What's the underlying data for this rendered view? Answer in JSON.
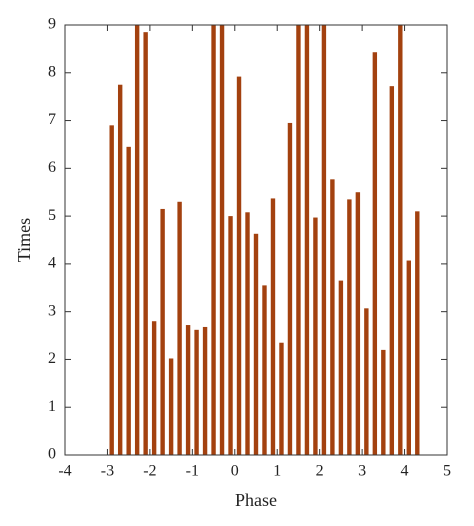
{
  "chart_data": {
    "type": "bar",
    "xlabel": "Phase",
    "ylabel": "Times",
    "x": [
      -2.9,
      -2.7,
      -2.5,
      -2.3,
      -2.1,
      -1.9,
      -1.7,
      -1.5,
      -1.3,
      -1.1,
      -0.9,
      -0.7,
      -0.5,
      -0.3,
      -0.1,
      0.1,
      0.3,
      0.5,
      0.7,
      0.9,
      1.1,
      1.3,
      1.5,
      1.7,
      1.9,
      2.1,
      2.3,
      2.5,
      2.7,
      2.9,
      3.1,
      3.3,
      3.5,
      3.7,
      3.9,
      4.1,
      4.3
    ],
    "values": [
      6.9,
      7.75,
      6.45,
      9,
      8.85,
      2.8,
      5.15,
      2.02,
      5.3,
      2.72,
      2.62,
      2.68,
      9,
      9,
      5.0,
      7.92,
      5.08,
      4.63,
      3.55,
      5.37,
      2.35,
      6.95,
      9,
      9,
      4.97,
      9,
      5.77,
      3.65,
      5.35,
      5.5,
      3.07,
      8.43,
      2.2,
      7.72,
      9,
      4.07,
      5.1
    ],
    "color": "#a3410f",
    "xlim": [
      -4,
      5
    ],
    "xticks": [
      -4,
      -3,
      -2,
      -1,
      0,
      1,
      2,
      3,
      4,
      5
    ],
    "ylim": [
      0,
      9
    ],
    "yticks": [
      0,
      1,
      2,
      3,
      4,
      5,
      6,
      7,
      8,
      9
    ]
  }
}
